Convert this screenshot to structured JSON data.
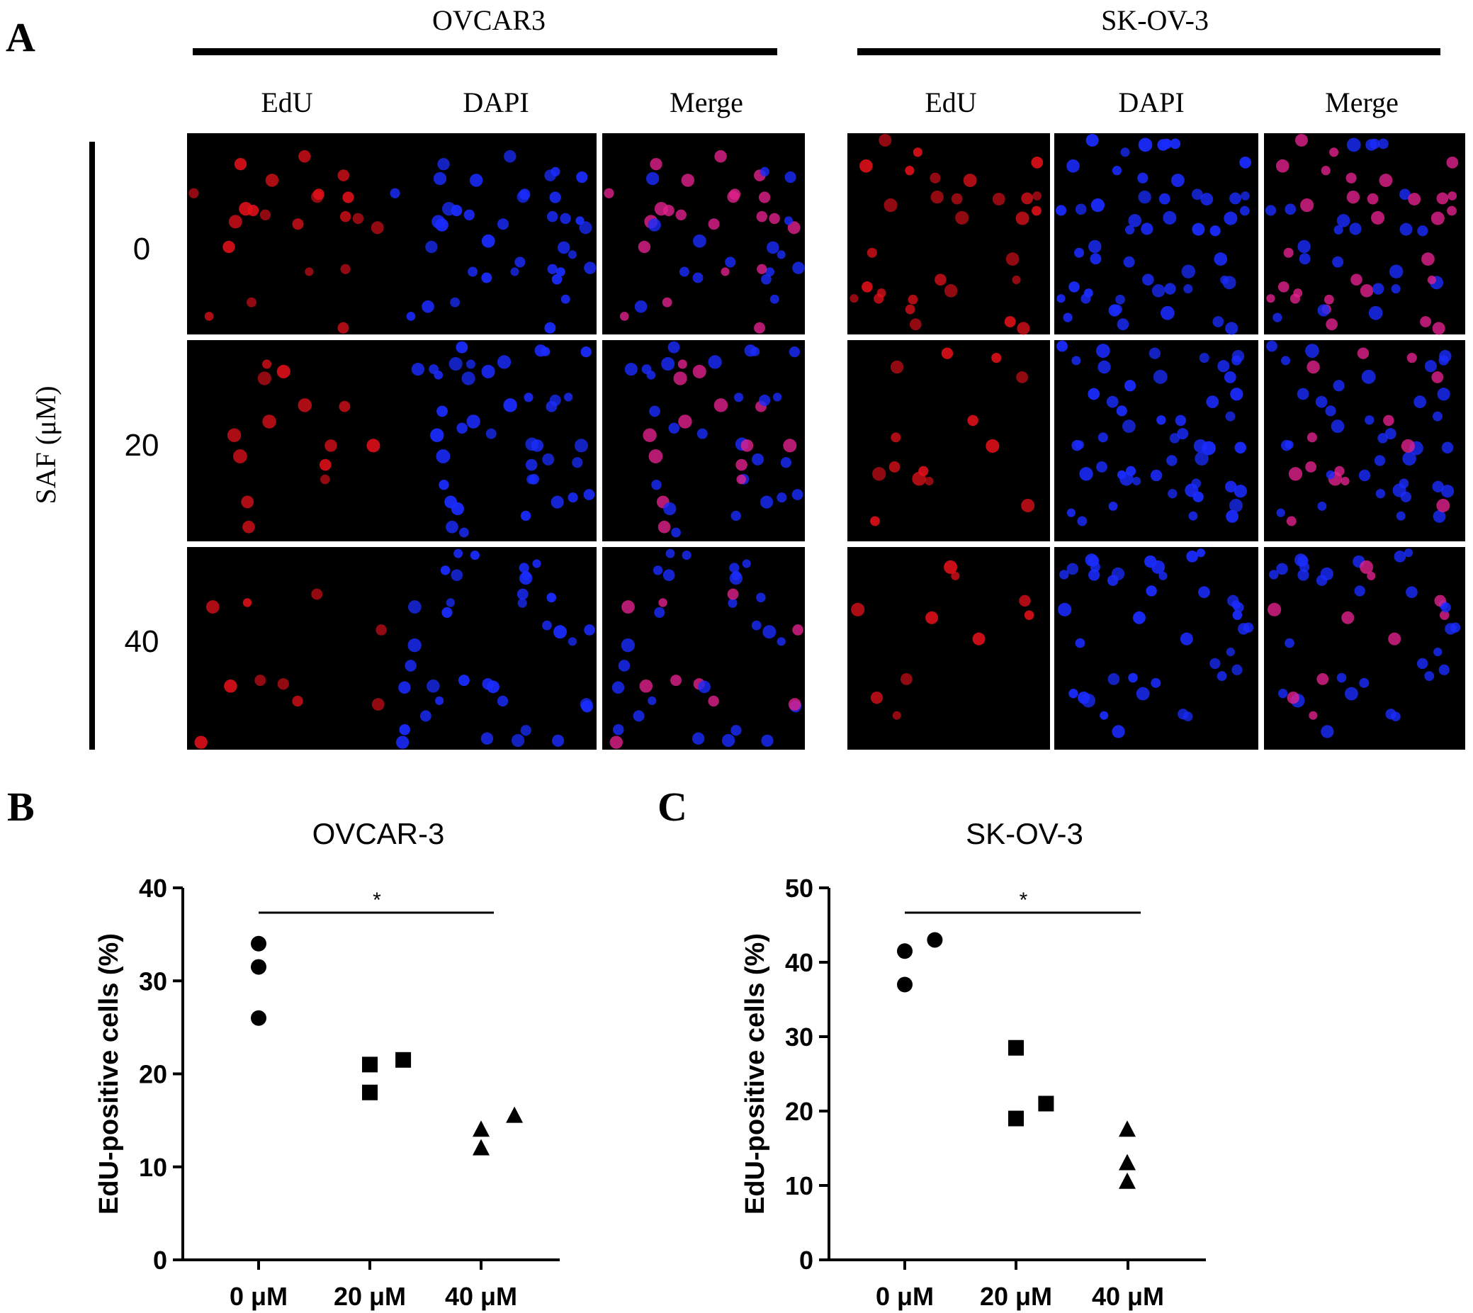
{
  "panel_letters": {
    "a": "A",
    "b": "B",
    "c": "C"
  },
  "panel_a": {
    "cell_lines": [
      {
        "name": "OVCAR3",
        "channels": [
          "EdU",
          "DAPI",
          "Merge"
        ]
      },
      {
        "name": "SK-OV-3",
        "channels": [
          "EdU",
          "DAPI",
          "Merge"
        ]
      }
    ],
    "row_axis_label": "SAF (μM)",
    "doses": [
      "0",
      "20",
      "40"
    ],
    "colors": {
      "edu": "#e0101a",
      "dapi": "#1a2cff",
      "merge": "#e0208c",
      "background": "#000000"
    }
  },
  "chart_data": [
    {
      "type": "scatter",
      "title": "OVCAR-3",
      "ylabel": "EdU-positive cells (%)",
      "xlabel": "",
      "categories": [
        "0 μM",
        "20 μM",
        "40 μM"
      ],
      "ylim": [
        0,
        40
      ],
      "yticks": [
        0,
        10,
        20,
        30,
        40
      ],
      "series": [
        {
          "category": "0 μM",
          "marker": "circle",
          "points": [
            {
              "x": 0,
              "y": 34
            },
            {
              "x": 0,
              "y": 31.5
            },
            {
              "x": 0,
              "y": 26
            }
          ]
        },
        {
          "category": "20 μM",
          "marker": "square",
          "points": [
            {
              "x": 1,
              "y": 21
            },
            {
              "x": 1,
              "y": 18
            },
            {
              "x": 1.3,
              "y": 21.5
            }
          ]
        },
        {
          "category": "40 μM",
          "marker": "triangle",
          "points": [
            {
              "x": 2,
              "y": 14
            },
            {
              "x": 2,
              "y": 12
            },
            {
              "x": 2.3,
              "y": 15.5
            }
          ]
        }
      ],
      "significance": {
        "from": "0 μM",
        "to": "40 μM",
        "label": "*"
      },
      "marker_color": "#000000"
    },
    {
      "type": "scatter",
      "title": "SK-OV-3",
      "ylabel": "EdU-positive cells (%)",
      "xlabel": "",
      "categories": [
        "0 μM",
        "20 μM",
        "40 μM"
      ],
      "ylim": [
        0,
        50
      ],
      "yticks": [
        0,
        10,
        20,
        30,
        40,
        50
      ],
      "series": [
        {
          "category": "0 μM",
          "marker": "circle",
          "points": [
            {
              "x": 0,
              "y": 41.5
            },
            {
              "x": 0,
              "y": 37
            },
            {
              "x": 0.27,
              "y": 43
            }
          ]
        },
        {
          "category": "20 μM",
          "marker": "square",
          "points": [
            {
              "x": 1,
              "y": 28.5
            },
            {
              "x": 1,
              "y": 19
            },
            {
              "x": 1.27,
              "y": 21
            }
          ]
        },
        {
          "category": "40 μM",
          "marker": "triangle",
          "points": [
            {
              "x": 2,
              "y": 17.5
            },
            {
              "x": 2,
              "y": 13
            },
            {
              "x": 2,
              "y": 10.5
            }
          ]
        }
      ],
      "significance": {
        "from": "0 μM",
        "to": "40 μM",
        "label": "*"
      },
      "marker_color": "#000000"
    }
  ]
}
